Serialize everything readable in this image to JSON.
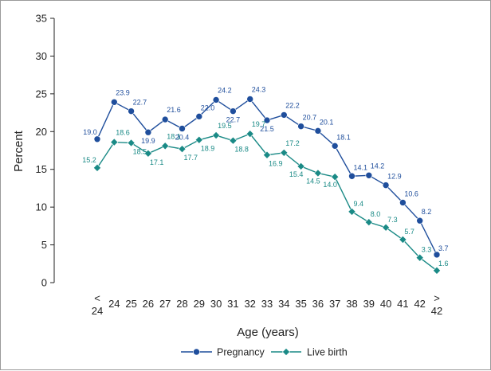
{
  "chart_data": {
    "type": "line",
    "ylabel": "Percent",
    "xlabel": "Age (years)",
    "ylim": [
      0,
      35
    ],
    "yticks": [
      0,
      5,
      10,
      15,
      20,
      25,
      30,
      35
    ],
    "grid": false,
    "legend_position": "bottom",
    "categories": [
      "< 24",
      "24",
      "25",
      "26",
      "27",
      "28",
      "29",
      "30",
      "31",
      "32",
      "33",
      "34",
      "35",
      "36",
      "37",
      "38",
      "39",
      "40",
      "41",
      "42",
      "> 42"
    ],
    "series": [
      {
        "name": "Pregnancy",
        "color": "#1f4e9c",
        "marker": "circle",
        "values": [
          19.0,
          23.9,
          22.7,
          19.9,
          21.6,
          20.4,
          22.0,
          24.2,
          22.7,
          24.3,
          21.5,
          22.2,
          20.7,
          20.1,
          18.1,
          14.1,
          14.2,
          12.9,
          10.6,
          8.2,
          3.7
        ]
      },
      {
        "name": "Live birth",
        "color": "#1a8a86",
        "marker": "diamond",
        "values": [
          15.2,
          18.6,
          18.5,
          17.1,
          18.1,
          17.7,
          18.9,
          19.5,
          18.8,
          19.7,
          16.9,
          17.2,
          15.4,
          14.5,
          14.0,
          9.4,
          8.0,
          7.3,
          5.7,
          3.3,
          1.6
        ]
      }
    ]
  }
}
